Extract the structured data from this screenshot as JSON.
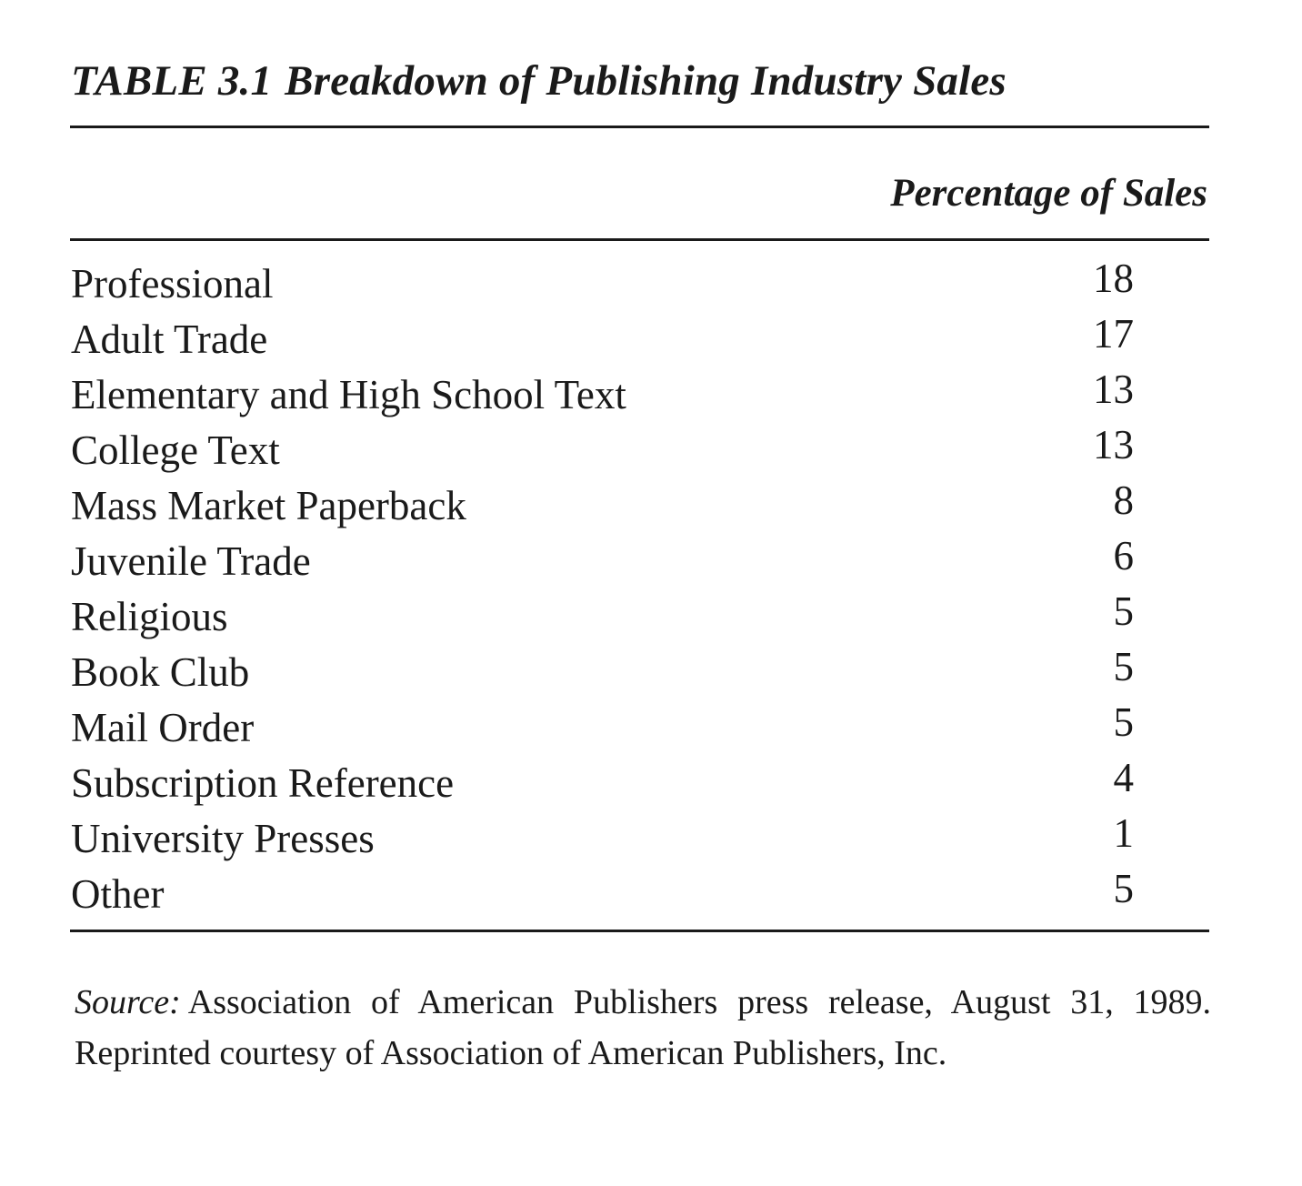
{
  "table": {
    "number": "TABLE 3.1",
    "title": "Breakdown of Publishing Industry Sales",
    "column_header": "Percentage of Sales",
    "rows": [
      {
        "label": "Professional",
        "value": "18"
      },
      {
        "label": "Adult Trade",
        "value": "17"
      },
      {
        "label": "Elementary and High School Text",
        "value": "13"
      },
      {
        "label": "College Text",
        "value": "13"
      },
      {
        "label": "Mass Market Paperback",
        "value": "8"
      },
      {
        "label": "Juvenile Trade",
        "value": "6"
      },
      {
        "label": "Religious",
        "value": "5"
      },
      {
        "label": "Book Club",
        "value": "5"
      },
      {
        "label": "Mail Order",
        "value": "5"
      },
      {
        "label": "Subscription Reference",
        "value": "4"
      },
      {
        "label": "University Presses",
        "value": "1"
      },
      {
        "label": "Other",
        "value": "5"
      }
    ]
  },
  "source": {
    "label": "Source:",
    "text": "Association of American Publishers press release, August 31, 1989. Reprinted courtesy of Association of American Publishers, Inc."
  }
}
